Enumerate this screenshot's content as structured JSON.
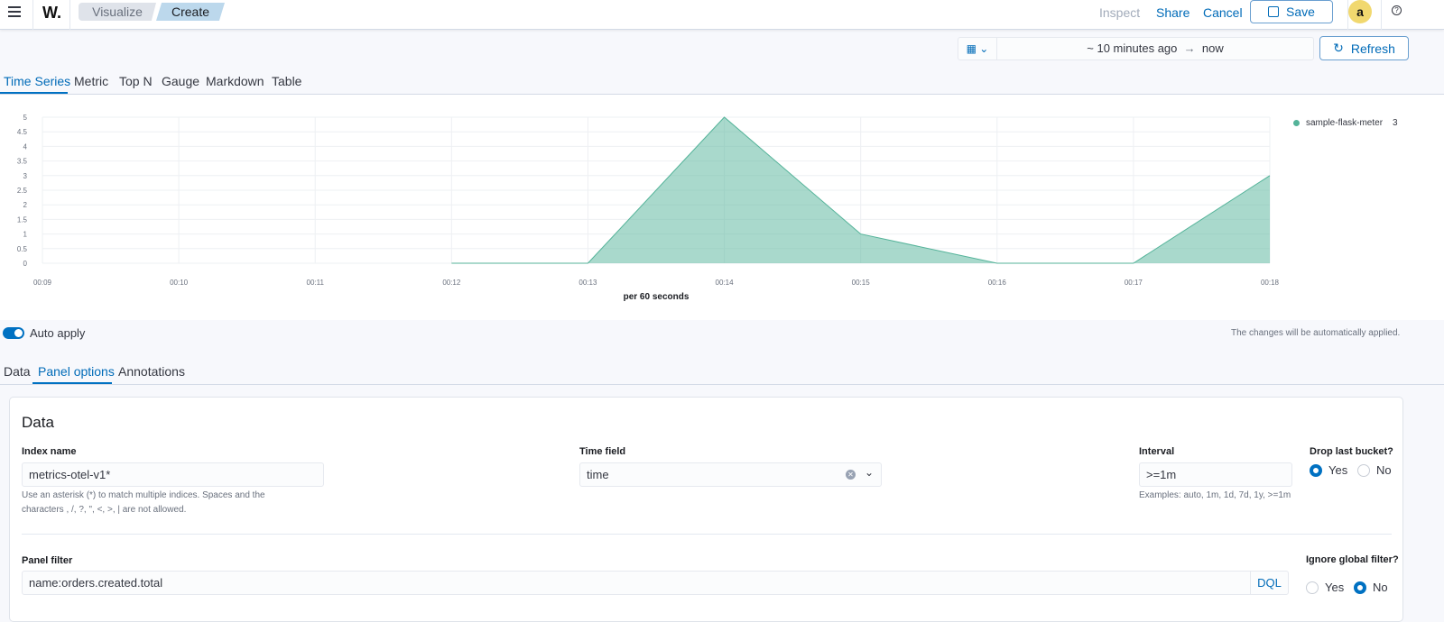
{
  "header": {
    "logo": "W.",
    "breadcrumbs": [
      "Visualize",
      "Create"
    ],
    "inspect": "Inspect",
    "share": "Share",
    "cancel": "Cancel",
    "save": "Save",
    "avatar": "a"
  },
  "time_picker": {
    "range_start": "~ 10 minutes ago",
    "arrow": "→",
    "range_end": "now",
    "refresh": "Refresh"
  },
  "viz_tabs": [
    "Time Series",
    "Metric",
    "Top N",
    "Gauge",
    "Markdown",
    "Table"
  ],
  "chart_data": {
    "type": "area",
    "x": [
      "00:09",
      "00:10",
      "00:11",
      "00:12",
      "00:13",
      "00:14",
      "00:15",
      "00:16",
      "00:17",
      "00:18"
    ],
    "series": [
      {
        "name": "sample-flask-meter",
        "values": [
          null,
          null,
          null,
          0,
          0,
          5,
          1,
          0,
          0,
          3
        ],
        "color": "#54b399"
      }
    ],
    "yticks": [
      "0",
      "0.5",
      "1",
      "1.5",
      "2",
      "2.5",
      "3",
      "3.5",
      "4",
      "4.5",
      "5"
    ],
    "ylim": [
      0,
      5
    ],
    "xlabel": "per 60 seconds",
    "legend_value": "3",
    "legend_position": "right",
    "grid": true
  },
  "auto_apply": {
    "label": "Auto apply",
    "enabled": true,
    "note": "The changes will be automatically applied."
  },
  "editor_tabs": [
    "Data",
    "Panel options",
    "Annotations"
  ],
  "panel": {
    "title": "Data",
    "index_name": {
      "label": "Index name",
      "value": "metrics-otel-v1*",
      "help1": "Use an asterisk (*) to match multiple indices. Spaces and the",
      "help2": "characters , /, ?, \", <, >, | are not allowed."
    },
    "time_field": {
      "label": "Time field",
      "value": "time"
    },
    "interval": {
      "label": "Interval",
      "value": ">=1m",
      "help": "Examples: auto, 1m, 1d, 7d, 1y, >=1m"
    },
    "drop_last_bucket": {
      "label": "Drop last bucket?",
      "yes": "Yes",
      "no": "No",
      "selected": "Yes"
    },
    "panel_filter": {
      "label": "Panel filter",
      "value": "name:orders.created.total",
      "lang": "DQL"
    },
    "ignore_global_filter": {
      "label": "Ignore global filter?",
      "yes": "Yes",
      "no": "No",
      "selected": "No"
    }
  }
}
